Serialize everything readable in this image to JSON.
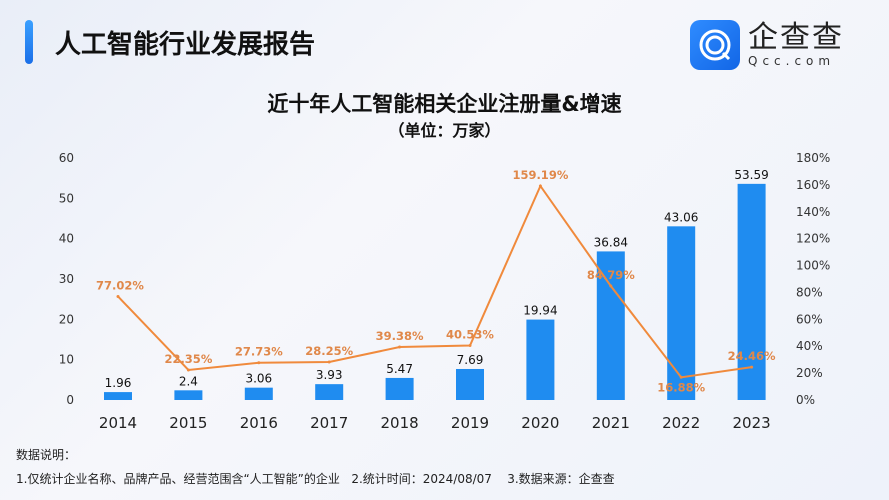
{
  "header": {
    "title": "人工智能行业发展报告",
    "logo_cn": "企查查",
    "logo_en": "Qcc.com"
  },
  "chart_data": {
    "type": "bar+line",
    "title": "近十年人工智能相关企业注册量&增速",
    "subtitle": "（单位：万家）",
    "categories": [
      "2014",
      "2015",
      "2016",
      "2017",
      "2018",
      "2019",
      "2020",
      "2021",
      "2022",
      "2023"
    ],
    "series": [
      {
        "type": "bar",
        "axis": "left",
        "values": [
          1.96,
          2.4,
          3.06,
          3.93,
          5.47,
          7.69,
          19.94,
          36.84,
          43.06,
          53.59
        ],
        "labels": [
          "1.96",
          "2.4",
          "3.06",
          "3.93",
          "5.47",
          "7.69",
          "19.94",
          "36.84",
          "43.06",
          "53.59"
        ],
        "color": "#1f8cf0"
      },
      {
        "type": "line",
        "axis": "right",
        "values": [
          77.02,
          22.35,
          27.73,
          28.25,
          39.38,
          40.53,
          159.19,
          84.79,
          16.88,
          24.46
        ],
        "labels": [
          "77.02%",
          "22.35%",
          "27.73%",
          "28.25%",
          "39.38%",
          "40.53%",
          "159.19%",
          "84.79%",
          "16.88%",
          "24.46%"
        ],
        "color": "#f08a3c"
      }
    ],
    "ylim_left": [
      0,
      60
    ],
    "yticks_left": [
      "0",
      "10",
      "20",
      "30",
      "40",
      "50",
      "60"
    ],
    "ylim_right": [
      0,
      180
    ],
    "yticks_right": [
      "0%",
      "20%",
      "40%",
      "60%",
      "80%",
      "100%",
      "120%",
      "140%",
      "160%",
      "180%"
    ],
    "grid": false
  },
  "notes": {
    "heading": "数据说明：",
    "body": "1.仅统计企业名称、品牌产品、经营范围含“人工智能”的企业   2.统计时间：2024/08/07    3.数据来源：企查查"
  }
}
